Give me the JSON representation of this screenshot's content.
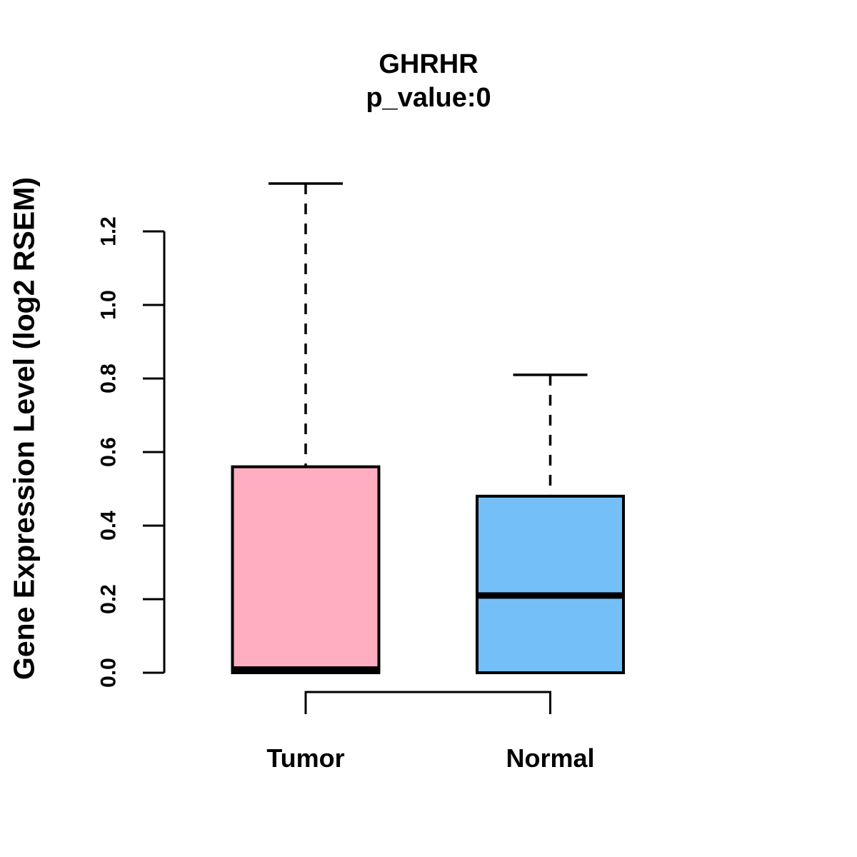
{
  "title": "GHRHR",
  "subtitle": "p_value:0",
  "chart_data": {
    "type": "boxplot",
    "title": "GHRHR",
    "subtitle": "p_value:0",
    "ylabel": "Gene Expression Level (log2 RSEM)",
    "ylim": [
      0.0,
      1.2
    ],
    "y_ticks": [
      0.0,
      0.2,
      0.4,
      0.6,
      0.8,
      1.0,
      1.2
    ],
    "y_tick_labels": [
      "0.0",
      "0.2",
      "0.4",
      "0.6",
      "0.8",
      "1.0",
      "1.2"
    ],
    "grid": false,
    "categories": [
      "Tumor",
      "Normal"
    ],
    "series": [
      {
        "name": "Tumor",
        "color": "#FFAEC1",
        "lower_whisker": 0.0,
        "q1": 0.0,
        "median": 0.0,
        "q3": 0.56,
        "upper_whisker": 1.33
      },
      {
        "name": "Normal",
        "color": "#74BFF8",
        "lower_whisker": 0.0,
        "q1": 0.0,
        "median": 0.21,
        "q3": 0.48,
        "upper_whisker": 0.81
      }
    ],
    "comparison_bracket": {
      "between": [
        "Tumor",
        "Normal"
      ]
    },
    "stroke_color": "#000000",
    "background_color": "#FFFFFF"
  }
}
